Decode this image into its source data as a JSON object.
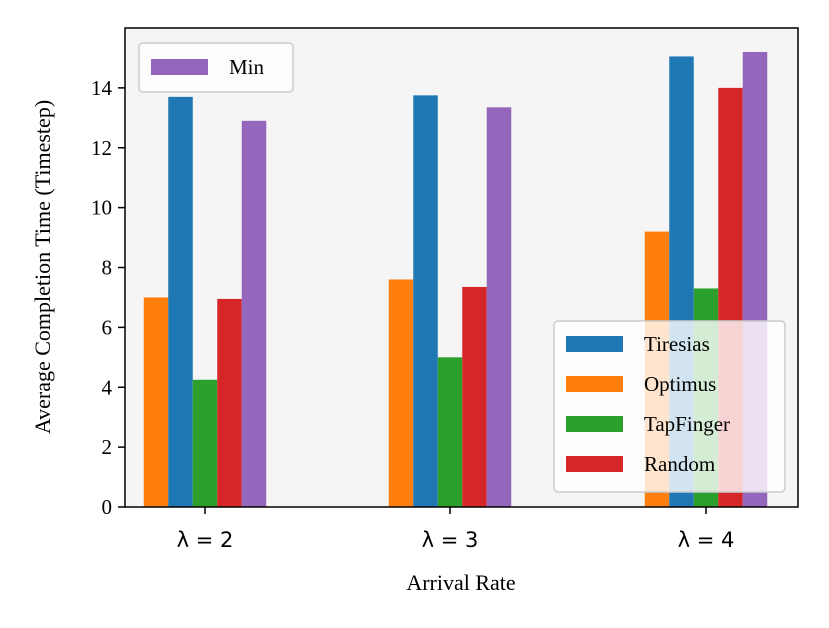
{
  "chart_data": {
    "type": "bar",
    "title": "",
    "xlabel": "Arrival Rate",
    "ylabel": "Average Completion Time (Timestep)",
    "categories": [
      "λ = 2",
      "λ = 3",
      "λ = 4"
    ],
    "ylim": [
      0,
      16
    ],
    "yticks": [
      0,
      2,
      4,
      6,
      8,
      10,
      12,
      14
    ],
    "grid": false,
    "series": [
      {
        "name": "Tiresias",
        "color": "#1f77b4",
        "values": [
          13.7,
          13.75,
          15.05
        ]
      },
      {
        "name": "Optimus",
        "color": "#ff7f0e",
        "values": [
          7.0,
          7.6,
          9.2
        ]
      },
      {
        "name": "TapFinger",
        "color": "#2ca02c",
        "values": [
          4.25,
          5.0,
          7.3
        ]
      },
      {
        "name": "Random",
        "color": "#d62728",
        "values": [
          6.95,
          7.35,
          14.0
        ]
      },
      {
        "name": "Min",
        "color": "#9467bd",
        "values": [
          12.9,
          13.35,
          15.2
        ]
      }
    ],
    "bar_order": [
      "Optimus",
      "Tiresias",
      "TapFinger",
      "Random",
      "Min"
    ],
    "legends": [
      {
        "placement": "upper-left",
        "entries": [
          "Min"
        ]
      },
      {
        "placement": "lower-right",
        "entries": [
          "Tiresias",
          "Optimus",
          "TapFinger",
          "Random"
        ]
      }
    ]
  }
}
